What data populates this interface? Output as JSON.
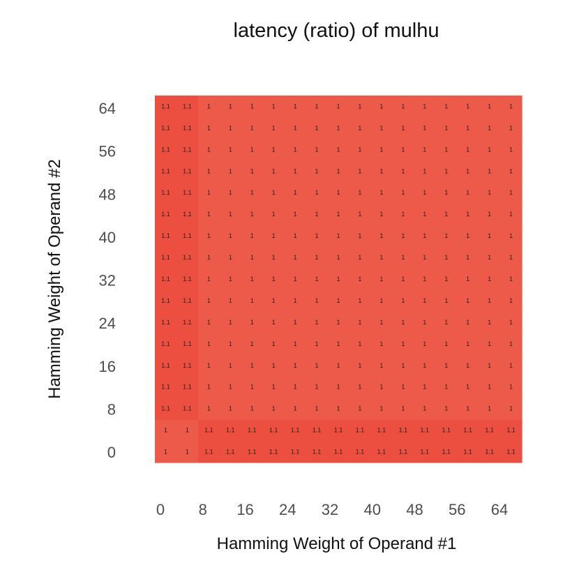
{
  "chart_data": {
    "type": "heatmap",
    "title": "latency (ratio) of mulhu",
    "xlabel": "Hamming Weight of Operand #1",
    "ylabel": "Hamming Weight of Operand #2",
    "x_ticks": [
      "0",
      "8",
      "16",
      "24",
      "32",
      "40",
      "48",
      "56",
      "64"
    ],
    "y_ticks": [
      "0",
      "8",
      "16",
      "24",
      "32",
      "40",
      "48",
      "56",
      "64"
    ],
    "x_bins": [
      0,
      4,
      8,
      12,
      16,
      20,
      24,
      28,
      32,
      36,
      40,
      44,
      48,
      52,
      56,
      60,
      64
    ],
    "y_bins": [
      0,
      4,
      8,
      12,
      16,
      20,
      24,
      28,
      32,
      36,
      40,
      44,
      48,
      52,
      56,
      60,
      64
    ],
    "xlim": [
      -2,
      68
    ],
    "ylim": [
      -2,
      66
    ],
    "values": [
      [
        "1",
        "1",
        "1.1",
        "1.1",
        "1.1",
        "1.1",
        "1.1",
        "1.1",
        "1.1",
        "1.1",
        "1.1",
        "1.1",
        "1.1",
        "1.1",
        "1.1",
        "1.1",
        "1.1"
      ],
      [
        "1",
        "1",
        "1.1",
        "1.1",
        "1.1",
        "1.1",
        "1.1",
        "1.1",
        "1.1",
        "1.1",
        "1.1",
        "1.1",
        "1.1",
        "1.1",
        "1.1",
        "1.1",
        "1.1"
      ],
      [
        "1.1",
        "1.1",
        "1",
        "1",
        "1",
        "1",
        "1",
        "1",
        "1",
        "1",
        "1",
        "1",
        "1",
        "1",
        "1",
        "1",
        "1"
      ],
      [
        "1.1",
        "1.1",
        "1",
        "1",
        "1",
        "1",
        "1",
        "1",
        "1",
        "1",
        "1",
        "1",
        "1",
        "1",
        "1",
        "1",
        "1"
      ],
      [
        "1.1",
        "1.1",
        "1",
        "1",
        "1",
        "1",
        "1",
        "1",
        "1",
        "1",
        "1",
        "1",
        "1",
        "1",
        "1",
        "1",
        "1"
      ],
      [
        "1.1",
        "1.1",
        "1",
        "1",
        "1",
        "1",
        "1",
        "1",
        "1",
        "1",
        "1",
        "1",
        "1",
        "1",
        "1",
        "1",
        "1"
      ],
      [
        "1.1",
        "1.1",
        "1",
        "1",
        "1",
        "1",
        "1",
        "1",
        "1",
        "1",
        "1",
        "1",
        "1",
        "1",
        "1",
        "1",
        "1"
      ],
      [
        "1.1",
        "1.1",
        "1",
        "1",
        "1",
        "1",
        "1",
        "1",
        "1",
        "1",
        "1",
        "1",
        "1",
        "1",
        "1",
        "1",
        "1"
      ],
      [
        "1.1",
        "1.1",
        "1",
        "1",
        "1",
        "1",
        "1",
        "1",
        "1",
        "1",
        "1",
        "1",
        "1",
        "1",
        "1",
        "1",
        "1"
      ],
      [
        "1.1",
        "1.1",
        "1",
        "1",
        "1",
        "1",
        "1",
        "1",
        "1",
        "1",
        "1",
        "1",
        "1",
        "1",
        "1",
        "1",
        "1"
      ],
      [
        "1.1",
        "1.1",
        "1",
        "1",
        "1",
        "1",
        "1",
        "1",
        "1",
        "1",
        "1",
        "1",
        "1",
        "1",
        "1",
        "1",
        "1"
      ],
      [
        "1.1",
        "1.1",
        "1",
        "1",
        "1",
        "1",
        "1",
        "1",
        "1",
        "1",
        "1",
        "1",
        "1",
        "1",
        "1",
        "1",
        "1"
      ],
      [
        "1.1",
        "1.1",
        "1",
        "1",
        "1",
        "1",
        "1",
        "1",
        "1",
        "1",
        "1",
        "1",
        "1",
        "1",
        "1",
        "1",
        "1"
      ],
      [
        "1.1",
        "1.1",
        "1",
        "1",
        "1",
        "1",
        "1",
        "1",
        "1",
        "1",
        "1",
        "1",
        "1",
        "1",
        "1",
        "1",
        "1"
      ],
      [
        "1.1",
        "1.1",
        "1",
        "1",
        "1",
        "1",
        "1",
        "1",
        "1",
        "1",
        "1",
        "1",
        "1",
        "1",
        "1",
        "1",
        "1"
      ],
      [
        "1.1",
        "1.1",
        "1",
        "1",
        "1",
        "1",
        "1",
        "1",
        "1",
        "1",
        "1",
        "1",
        "1",
        "1",
        "1",
        "1",
        "1"
      ],
      [
        "1.1",
        "1.1",
        "1",
        "1",
        "1",
        "1",
        "1",
        "1",
        "1",
        "1",
        "1",
        "1",
        "1",
        "1",
        "1",
        "1",
        "1"
      ]
    ],
    "colors": {
      "base": "#ee5a4a",
      "high": "#ec4f40",
      "axis_text": "#4d4d4d",
      "cell_text": "#222222"
    },
    "grid": false,
    "legend": "none"
  }
}
